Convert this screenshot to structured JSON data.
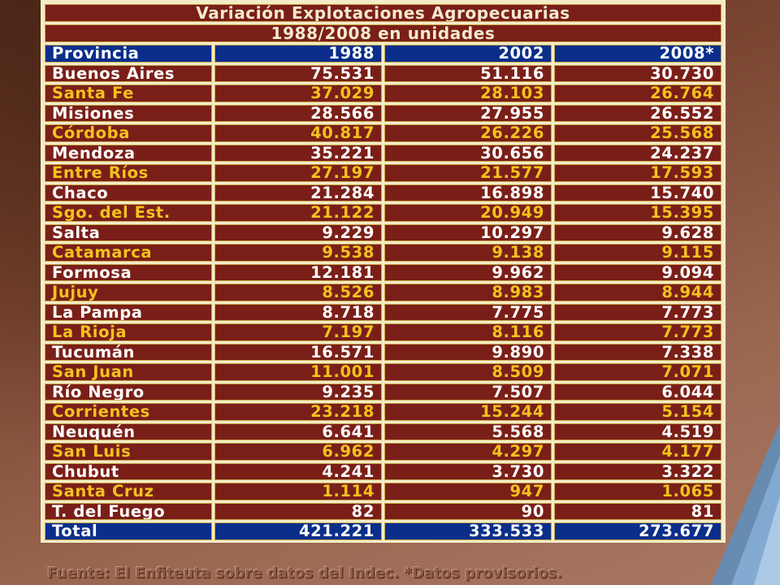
{
  "table": {
    "title_line1": "Variación Explotaciones Agropecuarias",
    "title_line2": "1988/2008 en unidades",
    "headers": [
      "Provincia",
      "1988",
      "2002",
      "2008*"
    ],
    "rows": [
      [
        "Buenos Aires",
        "75.531",
        "51.116",
        "30.730"
      ],
      [
        "Santa Fe",
        "37.029",
        "28.103",
        "26.764"
      ],
      [
        "Misiones",
        "28.566",
        "27.955",
        "26.552"
      ],
      [
        "Córdoba",
        "40.817",
        "26.226",
        "25.568"
      ],
      [
        "Mendoza",
        "35.221",
        "30.656",
        "24.237"
      ],
      [
        "Entre Ríos",
        "27.197",
        "21.577",
        "17.593"
      ],
      [
        "Chaco",
        "21.284",
        "16.898",
        "15.740"
      ],
      [
        "Sgo. del Est.",
        "21.122",
        "20.949",
        "15.395"
      ],
      [
        "Salta",
        "9.229",
        "10.297",
        "9.628"
      ],
      [
        "Catamarca",
        "9.538",
        "9.138",
        "9.115"
      ],
      [
        "Formosa",
        "12.181",
        "9.962",
        "9.094"
      ],
      [
        "Jujuy",
        "8.526",
        "8.983",
        "8.944"
      ],
      [
        "La Pampa",
        "8.718",
        "7.775",
        "7.773"
      ],
      [
        "La Rioja",
        "7.197",
        "8.116",
        "7.773"
      ],
      [
        "Tucumán",
        "16.571",
        "9.890",
        "7.338"
      ],
      [
        "San Juan",
        "11.001",
        "8.509",
        "7.071"
      ],
      [
        "Río Negro",
        "9.235",
        "7.507",
        "6.044"
      ],
      [
        "Corrientes",
        "23.218",
        "15.244",
        "5.154"
      ],
      [
        "Neuquén",
        "6.641",
        "5.568",
        "4.519"
      ],
      [
        "San Luis",
        "6.962",
        "4.297",
        "4.177"
      ],
      [
        "Chubut",
        "4.241",
        "3.730",
        "3.322"
      ],
      [
        "Santa Cruz",
        "1.114",
        "947",
        "1.065"
      ],
      [
        "T. del Fuego",
        "82",
        "90",
        "81"
      ]
    ],
    "total": [
      "Total",
      "421.221",
      "333.533",
      "273.677"
    ]
  },
  "footer": "Fuente: El Enfiteuta sobre datos del Indec. *Datos provisorios.",
  "colors": {
    "title_bg": "#7a1f18",
    "header_bg": "#0a2e8a",
    "text_white": "#ffffff",
    "text_yellow": "#f2c21f",
    "grid_bg": "#f3ecc8"
  }
}
